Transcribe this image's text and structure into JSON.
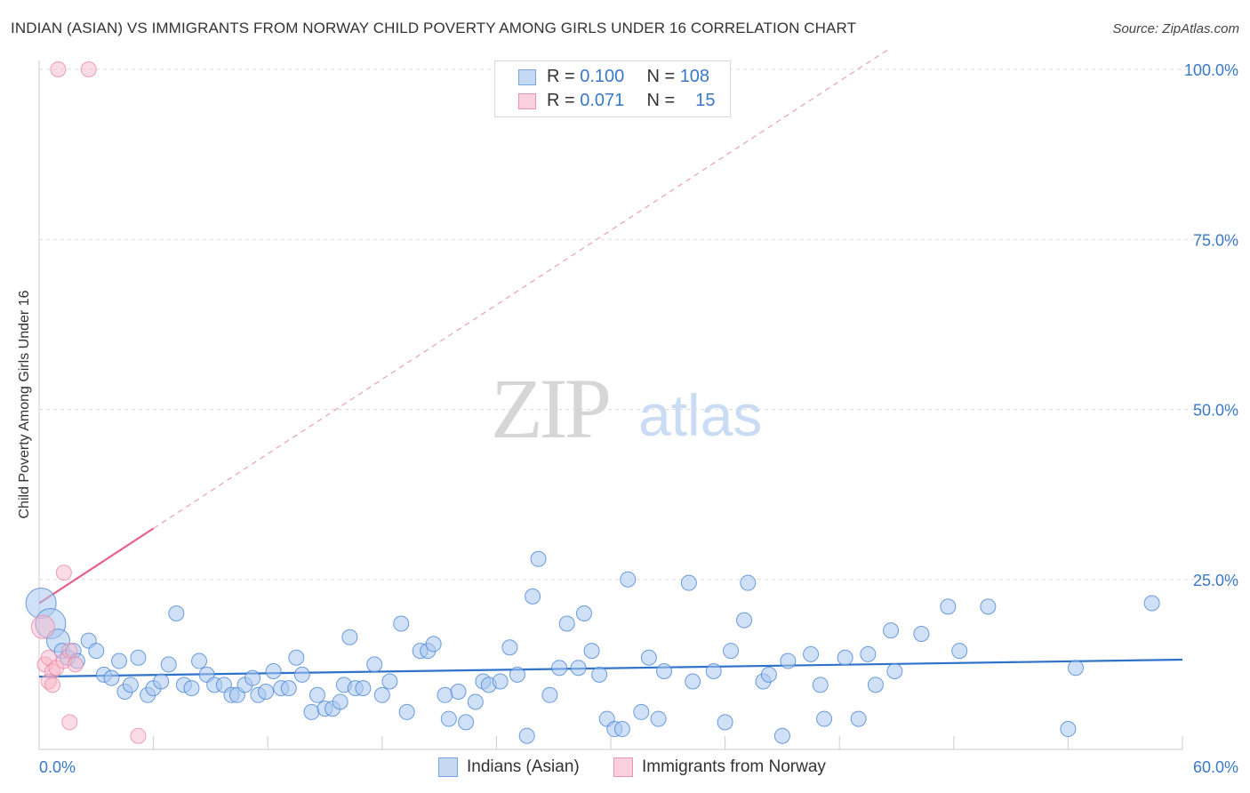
{
  "title": "INDIAN (ASIAN) VS IMMIGRANTS FROM NORWAY CHILD POVERTY AMONG GIRLS UNDER 16 CORRELATION CHART",
  "source": "Source: ZipAtlas.com",
  "watermark": {
    "zip": "ZIP",
    "atlas": "atlas"
  },
  "legend": {
    "rows": [
      {
        "r_label": "R =",
        "r_value": "0.100",
        "n_label": "N =",
        "n_value": "108",
        "color": "#aac8f0"
      },
      {
        "r_label": "R =",
        "r_value": "0.071",
        "n_label": "N =",
        "n_value": "15",
        "color": "#f7b8cc"
      }
    ]
  },
  "bottom_legend": [
    {
      "label": "Indians (Asian)",
      "color": "#aac8f0"
    },
    {
      "label": "Immigrants from Norway",
      "color": "#f7b8cc"
    }
  ],
  "colors": {
    "blue": "#4a86d4",
    "blue_fill": "#aac8f0",
    "pink": "#e8608a",
    "pink_fill": "#f7b8cc",
    "grid": "#dddddd",
    "tick_label": "#3a78c9"
  },
  "chart_data": {
    "type": "scatter",
    "title": "INDIAN (ASIAN) VS IMMIGRANTS FROM NORWAY CHILD POVERTY AMONG GIRLS UNDER 16 CORRELATION CHART",
    "xlabel": "",
    "ylabel": "Child Poverty Among Girls Under 16",
    "xlim": [
      0,
      60
    ],
    "ylim": [
      0,
      103
    ],
    "x_tick_labels": [
      "0.0%",
      "60.0%"
    ],
    "y_ticks": [
      25,
      50,
      75,
      100
    ],
    "y_tick_labels": [
      "25.0%",
      "50.0%",
      "75.0%",
      "100.0%"
    ],
    "grid": true,
    "series": [
      {
        "name": "Indians (Asian)",
        "r": 0.1,
        "n": 108,
        "trend": {
          "x": [
            0,
            60
          ],
          "y": [
            10.7,
            13.2
          ],
          "style": "solid"
        },
        "points": [
          {
            "x": 0.1,
            "y": 21.5,
            "s": 3
          },
          {
            "x": 0.6,
            "y": 18.5,
            "s": 3
          },
          {
            "x": 1.0,
            "y": 16.0,
            "s": 2
          },
          {
            "x": 1.2,
            "y": 14.5,
            "s": 1
          },
          {
            "x": 1.5,
            "y": 13.5,
            "s": 1
          },
          {
            "x": 1.8,
            "y": 14.5,
            "s": 1
          },
          {
            "x": 2.0,
            "y": 13.0,
            "s": 1
          },
          {
            "x": 2.6,
            "y": 16.0,
            "s": 1
          },
          {
            "x": 3.0,
            "y": 14.5,
            "s": 1
          },
          {
            "x": 3.4,
            "y": 11.0,
            "s": 1
          },
          {
            "x": 3.8,
            "y": 10.5,
            "s": 1
          },
          {
            "x": 4.2,
            "y": 13.0,
            "s": 1
          },
          {
            "x": 4.5,
            "y": 8.5,
            "s": 1
          },
          {
            "x": 4.8,
            "y": 9.5,
            "s": 1
          },
          {
            "x": 5.2,
            "y": 13.5,
            "s": 1
          },
          {
            "x": 5.7,
            "y": 8.0,
            "s": 1
          },
          {
            "x": 6.0,
            "y": 9.0,
            "s": 1
          },
          {
            "x": 6.4,
            "y": 10.0,
            "s": 1
          },
          {
            "x": 6.8,
            "y": 12.5,
            "s": 1
          },
          {
            "x": 7.2,
            "y": 20.0,
            "s": 1
          },
          {
            "x": 7.6,
            "y": 9.5,
            "s": 1
          },
          {
            "x": 8.0,
            "y": 9.0,
            "s": 1
          },
          {
            "x": 8.4,
            "y": 13.0,
            "s": 1
          },
          {
            "x": 8.8,
            "y": 11.0,
            "s": 1
          },
          {
            "x": 9.2,
            "y": 9.5,
            "s": 1
          },
          {
            "x": 9.7,
            "y": 9.5,
            "s": 1
          },
          {
            "x": 10.1,
            "y": 8.0,
            "s": 1
          },
          {
            "x": 10.4,
            "y": 8.0,
            "s": 1
          },
          {
            "x": 10.8,
            "y": 9.5,
            "s": 1
          },
          {
            "x": 11.2,
            "y": 10.5,
            "s": 1
          },
          {
            "x": 11.5,
            "y": 8.0,
            "s": 1
          },
          {
            "x": 11.9,
            "y": 8.5,
            "s": 1
          },
          {
            "x": 12.3,
            "y": 11.5,
            "s": 1
          },
          {
            "x": 12.7,
            "y": 9.0,
            "s": 1
          },
          {
            "x": 13.1,
            "y": 9.0,
            "s": 1
          },
          {
            "x": 13.5,
            "y": 13.5,
            "s": 1
          },
          {
            "x": 13.8,
            "y": 11.0,
            "s": 1
          },
          {
            "x": 14.3,
            "y": 5.5,
            "s": 1
          },
          {
            "x": 14.6,
            "y": 8.0,
            "s": 1
          },
          {
            "x": 15.0,
            "y": 6.0,
            "s": 1
          },
          {
            "x": 15.4,
            "y": 6.0,
            "s": 1
          },
          {
            "x": 15.8,
            "y": 7.0,
            "s": 1
          },
          {
            "x": 16.0,
            "y": 9.5,
            "s": 1
          },
          {
            "x": 16.3,
            "y": 16.5,
            "s": 1
          },
          {
            "x": 16.6,
            "y": 9.0,
            "s": 1
          },
          {
            "x": 17.0,
            "y": 9.0,
            "s": 1
          },
          {
            "x": 17.6,
            "y": 12.5,
            "s": 1
          },
          {
            "x": 18.0,
            "y": 8.0,
            "s": 1
          },
          {
            "x": 18.4,
            "y": 10.0,
            "s": 1
          },
          {
            "x": 19.0,
            "y": 18.5,
            "s": 1
          },
          {
            "x": 19.3,
            "y": 5.5,
            "s": 1
          },
          {
            "x": 20.0,
            "y": 14.5,
            "s": 1
          },
          {
            "x": 20.4,
            "y": 14.5,
            "s": 1
          },
          {
            "x": 20.7,
            "y": 15.5,
            "s": 1
          },
          {
            "x": 21.3,
            "y": 8.0,
            "s": 1
          },
          {
            "x": 21.5,
            "y": 4.5,
            "s": 1
          },
          {
            "x": 22.0,
            "y": 8.5,
            "s": 1
          },
          {
            "x": 22.4,
            "y": 4.0,
            "s": 1
          },
          {
            "x": 22.9,
            "y": 7.0,
            "s": 1
          },
          {
            "x": 23.3,
            "y": 10.0,
            "s": 1
          },
          {
            "x": 23.6,
            "y": 9.5,
            "s": 1
          },
          {
            "x": 24.2,
            "y": 10.0,
            "s": 1
          },
          {
            "x": 24.7,
            "y": 15.0,
            "s": 1
          },
          {
            "x": 25.1,
            "y": 11.0,
            "s": 1
          },
          {
            "x": 25.6,
            "y": 2.0,
            "s": 1
          },
          {
            "x": 25.9,
            "y": 22.5,
            "s": 1
          },
          {
            "x": 26.2,
            "y": 28.0,
            "s": 1
          },
          {
            "x": 26.8,
            "y": 8.0,
            "s": 1
          },
          {
            "x": 27.3,
            "y": 12.0,
            "s": 1
          },
          {
            "x": 27.7,
            "y": 18.5,
            "s": 1
          },
          {
            "x": 28.3,
            "y": 12.0,
            "s": 1
          },
          {
            "x": 28.6,
            "y": 20.0,
            "s": 1
          },
          {
            "x": 29.0,
            "y": 14.5,
            "s": 1
          },
          {
            "x": 29.4,
            "y": 11.0,
            "s": 1
          },
          {
            "x": 29.8,
            "y": 4.5,
            "s": 1
          },
          {
            "x": 30.2,
            "y": 3.0,
            "s": 1
          },
          {
            "x": 30.6,
            "y": 3.0,
            "s": 1
          },
          {
            "x": 30.9,
            "y": 25.0,
            "s": 1
          },
          {
            "x": 31.6,
            "y": 5.5,
            "s": 1
          },
          {
            "x": 32.0,
            "y": 13.5,
            "s": 1
          },
          {
            "x": 32.5,
            "y": 4.5,
            "s": 1
          },
          {
            "x": 32.8,
            "y": 11.5,
            "s": 1
          },
          {
            "x": 34.1,
            "y": 24.5,
            "s": 1
          },
          {
            "x": 34.3,
            "y": 10.0,
            "s": 1
          },
          {
            "x": 35.4,
            "y": 11.5,
            "s": 1
          },
          {
            "x": 36.0,
            "y": 4.0,
            "s": 1
          },
          {
            "x": 36.3,
            "y": 14.5,
            "s": 1
          },
          {
            "x": 37.0,
            "y": 19.0,
            "s": 1
          },
          {
            "x": 37.2,
            "y": 24.5,
            "s": 1
          },
          {
            "x": 38.0,
            "y": 10.0,
            "s": 1
          },
          {
            "x": 38.3,
            "y": 11.0,
            "s": 1
          },
          {
            "x": 39.0,
            "y": 2.0,
            "s": 1
          },
          {
            "x": 39.3,
            "y": 13.0,
            "s": 1
          },
          {
            "x": 40.5,
            "y": 14.0,
            "s": 1
          },
          {
            "x": 41.0,
            "y": 9.5,
            "s": 1
          },
          {
            "x": 41.2,
            "y": 4.5,
            "s": 1
          },
          {
            "x": 42.3,
            "y": 13.5,
            "s": 1
          },
          {
            "x": 43.0,
            "y": 4.5,
            "s": 1
          },
          {
            "x": 43.5,
            "y": 14.0,
            "s": 1
          },
          {
            "x": 43.9,
            "y": 9.5,
            "s": 1
          },
          {
            "x": 44.7,
            "y": 17.5,
            "s": 1
          },
          {
            "x": 44.9,
            "y": 11.5,
            "s": 1
          },
          {
            "x": 46.3,
            "y": 17.0,
            "s": 1
          },
          {
            "x": 47.7,
            "y": 21.0,
            "s": 1
          },
          {
            "x": 48.3,
            "y": 14.5,
            "s": 1
          },
          {
            "x": 49.8,
            "y": 21.0,
            "s": 1
          },
          {
            "x": 54.0,
            "y": 3.0,
            "s": 1
          },
          {
            "x": 54.4,
            "y": 12.0,
            "s": 1
          },
          {
            "x": 58.4,
            "y": 21.5,
            "s": 1
          }
        ]
      },
      {
        "name": "Immigrants from Norway",
        "r": 0.071,
        "n": 15,
        "trend": {
          "x": [
            0,
            6.0
          ],
          "y": [
            21.5,
            32.5
          ],
          "style": "solid",
          "extension": {
            "x": [
              6.0,
              44.6
            ],
            "y": [
              32.5,
              103
            ],
            "style": "dashed"
          }
        },
        "points": [
          {
            "x": 1.0,
            "y": 100.0,
            "s": 1
          },
          {
            "x": 2.6,
            "y": 100.0,
            "s": 1
          },
          {
            "x": 0.2,
            "y": 18.0,
            "s": 2
          },
          {
            "x": 0.3,
            "y": 12.5,
            "s": 1
          },
          {
            "x": 0.5,
            "y": 13.5,
            "s": 1
          },
          {
            "x": 0.7,
            "y": 11.5,
            "s": 1
          },
          {
            "x": 0.9,
            "y": 12.0,
            "s": 1
          },
          {
            "x": 1.3,
            "y": 13.0,
            "s": 1
          },
          {
            "x": 1.6,
            "y": 14.5,
            "s": 1
          },
          {
            "x": 1.9,
            "y": 12.5,
            "s": 1
          },
          {
            "x": 0.5,
            "y": 10.0,
            "s": 1
          },
          {
            "x": 0.7,
            "y": 9.5,
            "s": 1
          },
          {
            "x": 1.3,
            "y": 26.0,
            "s": 1
          },
          {
            "x": 1.6,
            "y": 4.0,
            "s": 1
          },
          {
            "x": 5.2,
            "y": 2.0,
            "s": 1
          }
        ]
      }
    ]
  }
}
